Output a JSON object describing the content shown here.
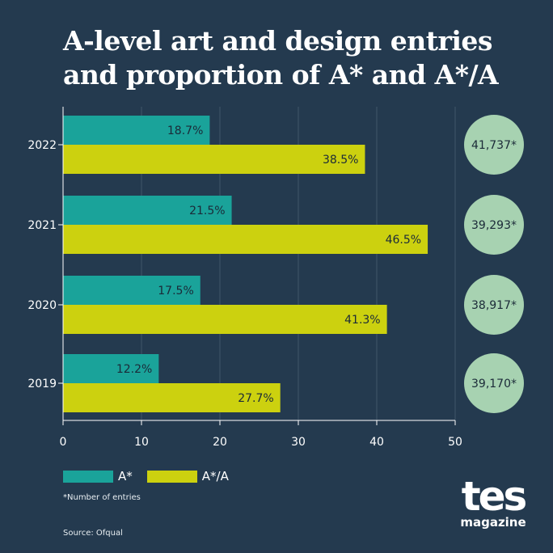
{
  "title_line1": "A-level art and design entries",
  "title_line2": "and proportion of A* and A*/A",
  "note": "*Number of entries",
  "source": "Source: Ofqual",
  "logo": {
    "main": "tes",
    "sub": "magazine"
  },
  "colors": {
    "background": "#243a4f",
    "a_star": "#1aa39a",
    "a_star_a": "#ccd10f",
    "entries_circle": "#a7d2b1"
  },
  "chart_data": {
    "type": "bar",
    "orientation": "horizontal",
    "categories": [
      "2022",
      "2021",
      "2020",
      "2019"
    ],
    "series": [
      {
        "name": "A*",
        "values": [
          18.7,
          21.5,
          17.5,
          12.2
        ],
        "labels": [
          "18.7%",
          "21.5%",
          "17.5%",
          "12.2%"
        ]
      },
      {
        "name": "A*/A",
        "values": [
          38.5,
          46.5,
          41.3,
          27.7
        ],
        "labels": [
          "38.5%",
          "46.5%",
          "41.3%",
          "27.7%"
        ]
      }
    ],
    "entries": [
      "41,737*",
      "39,293*",
      "38,917*",
      "39,170*"
    ],
    "xlim": [
      0,
      50
    ],
    "xticks": [
      "0",
      "10",
      "20",
      "30",
      "40",
      "50"
    ],
    "grid": true,
    "legend_position": "bottom-left"
  }
}
